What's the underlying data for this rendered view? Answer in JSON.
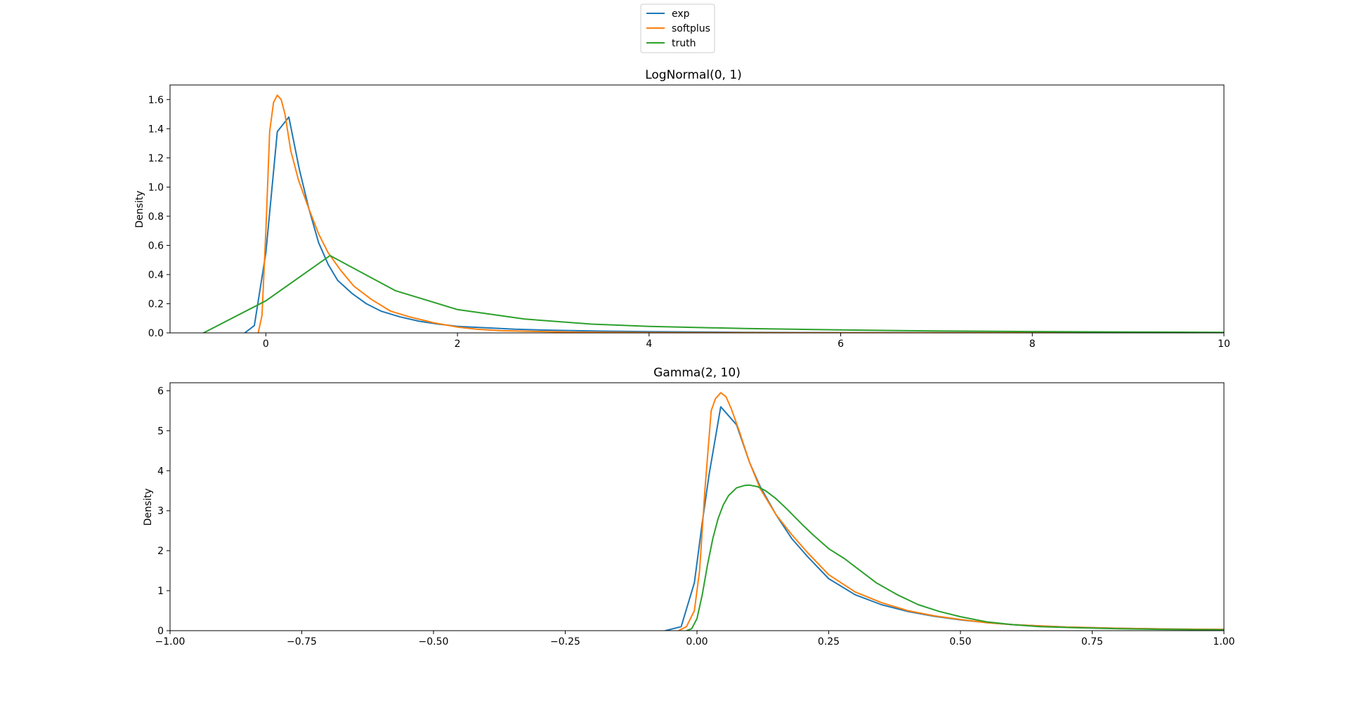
{
  "legend": {
    "placement": "top-center",
    "entries": [
      {
        "name": "exp",
        "color": "#1f77b4"
      },
      {
        "name": "softplus",
        "color": "#ff7f0e"
      },
      {
        "name": "truth",
        "color": "#2ca02c"
      }
    ]
  },
  "chart_data": [
    {
      "type": "line",
      "title": "LogNormal(0, 1)",
      "xlabel": "",
      "ylabel": "Density",
      "xlim": [
        -1,
        10
      ],
      "ylim": [
        0,
        1.7
      ],
      "xticks": [
        0,
        2,
        4,
        6,
        8,
        10
      ],
      "xtick_labels": [
        "0",
        "2",
        "4",
        "6",
        "8",
        "10"
      ],
      "yticks": [
        0.0,
        0.2,
        0.4,
        0.6,
        0.8,
        1.0,
        1.2,
        1.4,
        1.6
      ],
      "ytick_labels": [
        "0.0",
        "0.2",
        "0.4",
        "0.6",
        "0.8",
        "1.0",
        "1.2",
        "1.4",
        "1.6"
      ],
      "grid": false,
      "series": [
        {
          "name": "exp",
          "color": "#1f77b4",
          "x": [
            -0.22,
            -0.12,
            0.0,
            0.12,
            0.24,
            0.35,
            0.45,
            0.55,
            0.65,
            0.75,
            0.9,
            1.05,
            1.2,
            1.4,
            1.6,
            1.8,
            2.0,
            2.3,
            2.6,
            3.0,
            3.5,
            4.0,
            5.0,
            6.0,
            8.0,
            10.0
          ],
          "y": [
            0.0,
            0.05,
            0.55,
            1.38,
            1.48,
            1.12,
            0.85,
            0.62,
            0.47,
            0.36,
            0.27,
            0.2,
            0.15,
            0.11,
            0.08,
            0.06,
            0.045,
            0.035,
            0.025,
            0.018,
            0.012,
            0.008,
            0.004,
            0.002,
            0.001,
            0.0
          ]
        },
        {
          "name": "softplus",
          "color": "#ff7f0e",
          "x": [
            -0.08,
            -0.04,
            0.0,
            0.04,
            0.08,
            0.12,
            0.16,
            0.2,
            0.26,
            0.34,
            0.45,
            0.55,
            0.65,
            0.78,
            0.92,
            1.1,
            1.3,
            1.5,
            1.75,
            2.0,
            2.2,
            2.45,
            2.8,
            3.2,
            4.0,
            5.0,
            10.0
          ],
          "y": [
            0.0,
            0.12,
            0.7,
            1.38,
            1.58,
            1.63,
            1.6,
            1.5,
            1.25,
            1.05,
            0.85,
            0.68,
            0.55,
            0.43,
            0.32,
            0.23,
            0.15,
            0.11,
            0.07,
            0.04,
            0.025,
            0.015,
            0.01,
            0.005,
            0.002,
            0.001,
            0.0
          ]
        },
        {
          "name": "truth",
          "color": "#2ca02c",
          "x": [
            -0.65,
            0.0,
            0.67,
            1.35,
            2.0,
            2.7,
            3.4,
            4.0,
            5.0,
            6.0,
            7.0,
            8.0,
            9.0,
            10.0
          ],
          "y": [
            0.0,
            0.22,
            0.53,
            0.29,
            0.16,
            0.095,
            0.06,
            0.045,
            0.03,
            0.02,
            0.013,
            0.009,
            0.006,
            0.004
          ]
        }
      ]
    },
    {
      "type": "line",
      "title": "Gamma(2, 10)",
      "xlabel": "",
      "ylabel": "Density",
      "xlim": [
        -1,
        1
      ],
      "ylim": [
        0,
        6.2
      ],
      "xticks": [
        -1.0,
        -0.75,
        -0.5,
        -0.25,
        0.0,
        0.25,
        0.5,
        0.75,
        1.0
      ],
      "xtick_labels": [
        "−1.00",
        "−0.75",
        "−0.50",
        "−0.25",
        "0.00",
        "0.25",
        "0.50",
        "0.75",
        "1.00"
      ],
      "yticks": [
        0,
        1,
        2,
        3,
        4,
        5,
        6
      ],
      "ytick_labels": [
        "0",
        "1",
        "2",
        "3",
        "4",
        "5",
        "6"
      ],
      "grid": false,
      "series": [
        {
          "name": "exp",
          "color": "#1f77b4",
          "x": [
            -0.06,
            -0.03,
            -0.005,
            0.01,
            0.023,
            0.045,
            0.075,
            0.1,
            0.12,
            0.15,
            0.18,
            0.21,
            0.25,
            0.3,
            0.35,
            0.4,
            0.45,
            0.5,
            0.55,
            0.6,
            0.7,
            0.8,
            0.9,
            1.0
          ],
          "y": [
            0.0,
            0.1,
            1.2,
            2.7,
            3.9,
            5.6,
            5.15,
            4.2,
            3.6,
            2.9,
            2.3,
            1.85,
            1.3,
            0.9,
            0.65,
            0.48,
            0.36,
            0.27,
            0.2,
            0.15,
            0.09,
            0.06,
            0.04,
            0.03
          ]
        },
        {
          "name": "softplus",
          "color": "#ff7f0e",
          "x": [
            -0.035,
            -0.02,
            -0.005,
            0.005,
            0.015,
            0.027,
            0.035,
            0.045,
            0.055,
            0.065,
            0.08,
            0.1,
            0.12,
            0.15,
            0.18,
            0.21,
            0.25,
            0.3,
            0.35,
            0.4,
            0.45,
            0.5,
            0.55,
            0.6,
            0.7,
            0.8,
            0.9,
            1.0
          ],
          "y": [
            0.0,
            0.1,
            0.5,
            1.5,
            3.5,
            5.5,
            5.8,
            5.95,
            5.85,
            5.55,
            5.0,
            4.2,
            3.55,
            2.9,
            2.4,
            1.95,
            1.4,
            0.97,
            0.7,
            0.5,
            0.37,
            0.28,
            0.2,
            0.15,
            0.09,
            0.06,
            0.04,
            0.03
          ]
        },
        {
          "name": "truth",
          "color": "#2ca02c",
          "x": [
            -0.02,
            -0.01,
            0.0,
            0.01,
            0.02,
            0.03,
            0.04,
            0.05,
            0.06,
            0.075,
            0.09,
            0.1,
            0.115,
            0.13,
            0.15,
            0.17,
            0.2,
            0.22,
            0.25,
            0.28,
            0.3,
            0.34,
            0.38,
            0.42,
            0.46,
            0.5,
            0.55,
            0.6,
            0.65,
            0.7,
            0.8,
            0.9,
            1.0
          ],
          "y": [
            0.0,
            0.05,
            0.3,
            0.9,
            1.65,
            2.3,
            2.8,
            3.15,
            3.38,
            3.57,
            3.63,
            3.64,
            3.6,
            3.5,
            3.3,
            3.05,
            2.65,
            2.4,
            2.05,
            1.8,
            1.6,
            1.2,
            0.9,
            0.65,
            0.48,
            0.35,
            0.22,
            0.15,
            0.1,
            0.08,
            0.05,
            0.03,
            0.02
          ]
        }
      ]
    }
  ]
}
